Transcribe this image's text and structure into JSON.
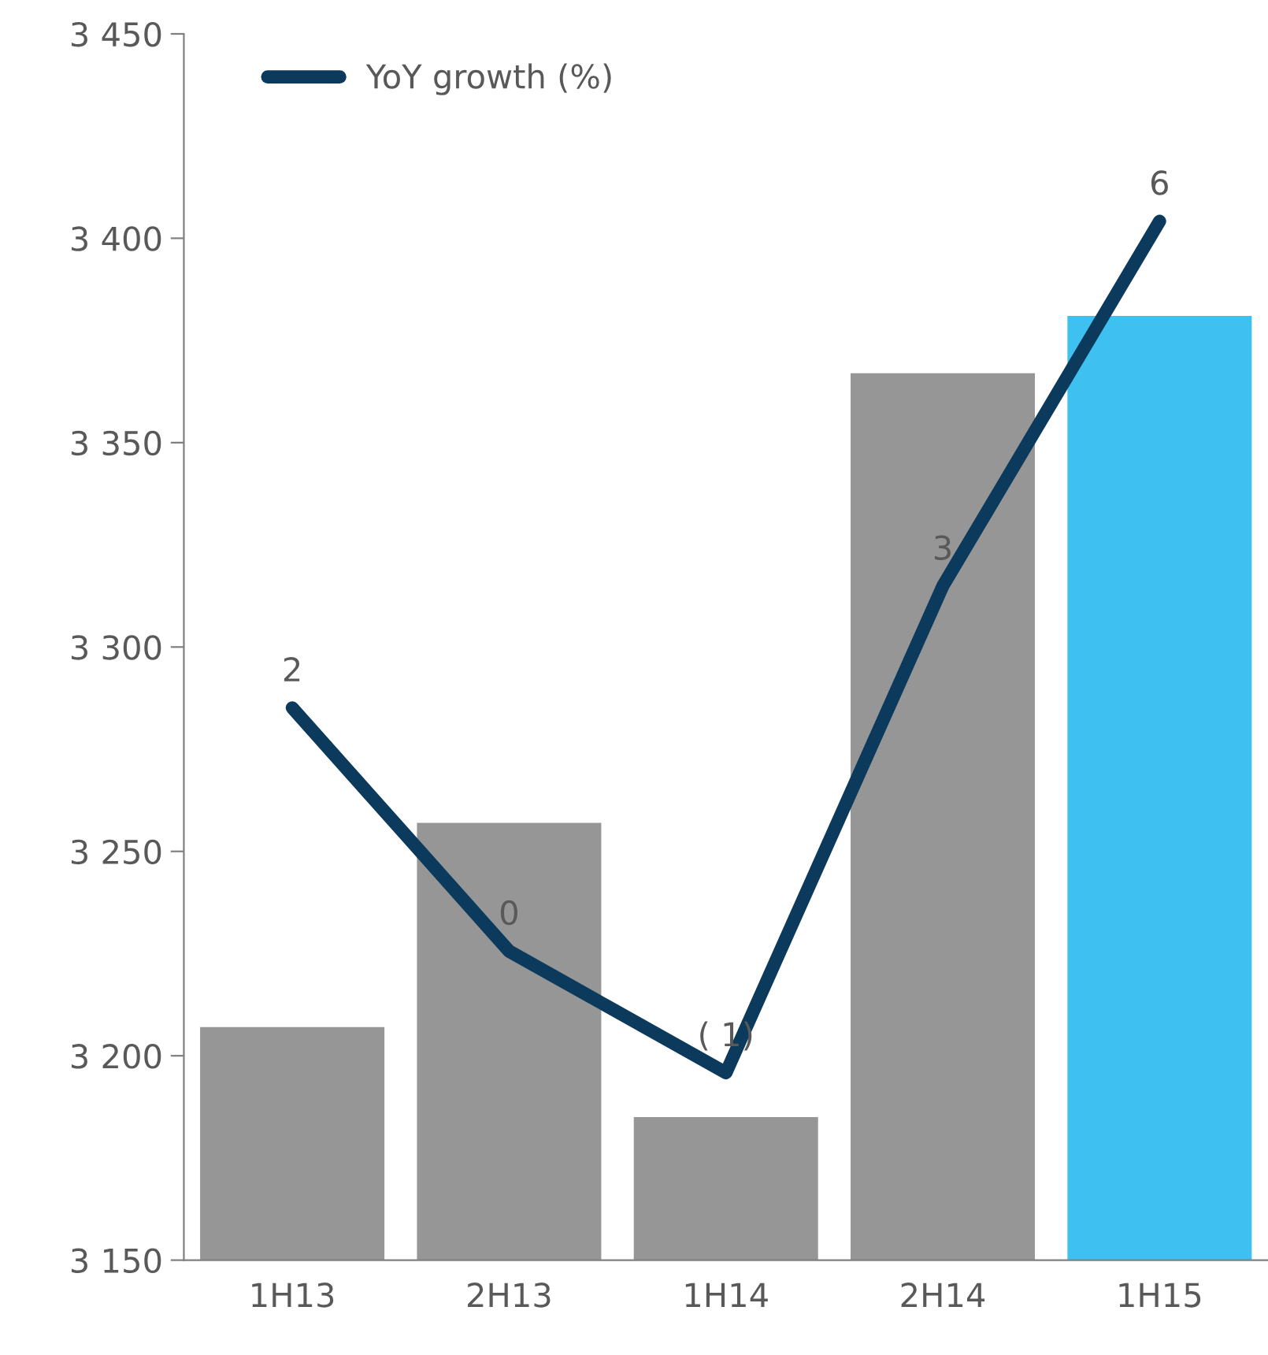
{
  "chart_data": {
    "type": "bar",
    "categories": [
      "1H13",
      "2H13",
      "1H14",
      "2H14",
      "1H15"
    ],
    "series": [
      {
        "colors": [
          "#969696",
          "#969696",
          "#969696",
          "#969696",
          "#3ec1f0"
        ],
        "values": [
          3207,
          3257,
          3185,
          3367,
          3381
        ]
      },
      {
        "type": "line",
        "name": "YoY growth (%)",
        "color": "#0b3a5c",
        "axis": "y2",
        "values": [
          2,
          0,
          -1,
          3,
          6
        ],
        "value_labels": [
          "2",
          "0",
          "( 1)",
          "3",
          "6"
        ]
      }
    ],
    "ylim": [
      3150,
      3450
    ],
    "yticks": [
      {
        "value": 3150,
        "label": "3 150"
      },
      {
        "value": 3200,
        "label": "3 200"
      },
      {
        "value": 3250,
        "label": "3 250"
      },
      {
        "value": 3300,
        "label": "3 300"
      },
      {
        "value": 3350,
        "label": "3 350"
      },
      {
        "value": 3400,
        "label": "3 400"
      },
      {
        "value": 3450,
        "label": "3 450"
      }
    ],
    "tick_labels": "xy",
    "legend": "top left",
    "grid": false,
    "line_style": "solid",
    "marker": "none"
  }
}
